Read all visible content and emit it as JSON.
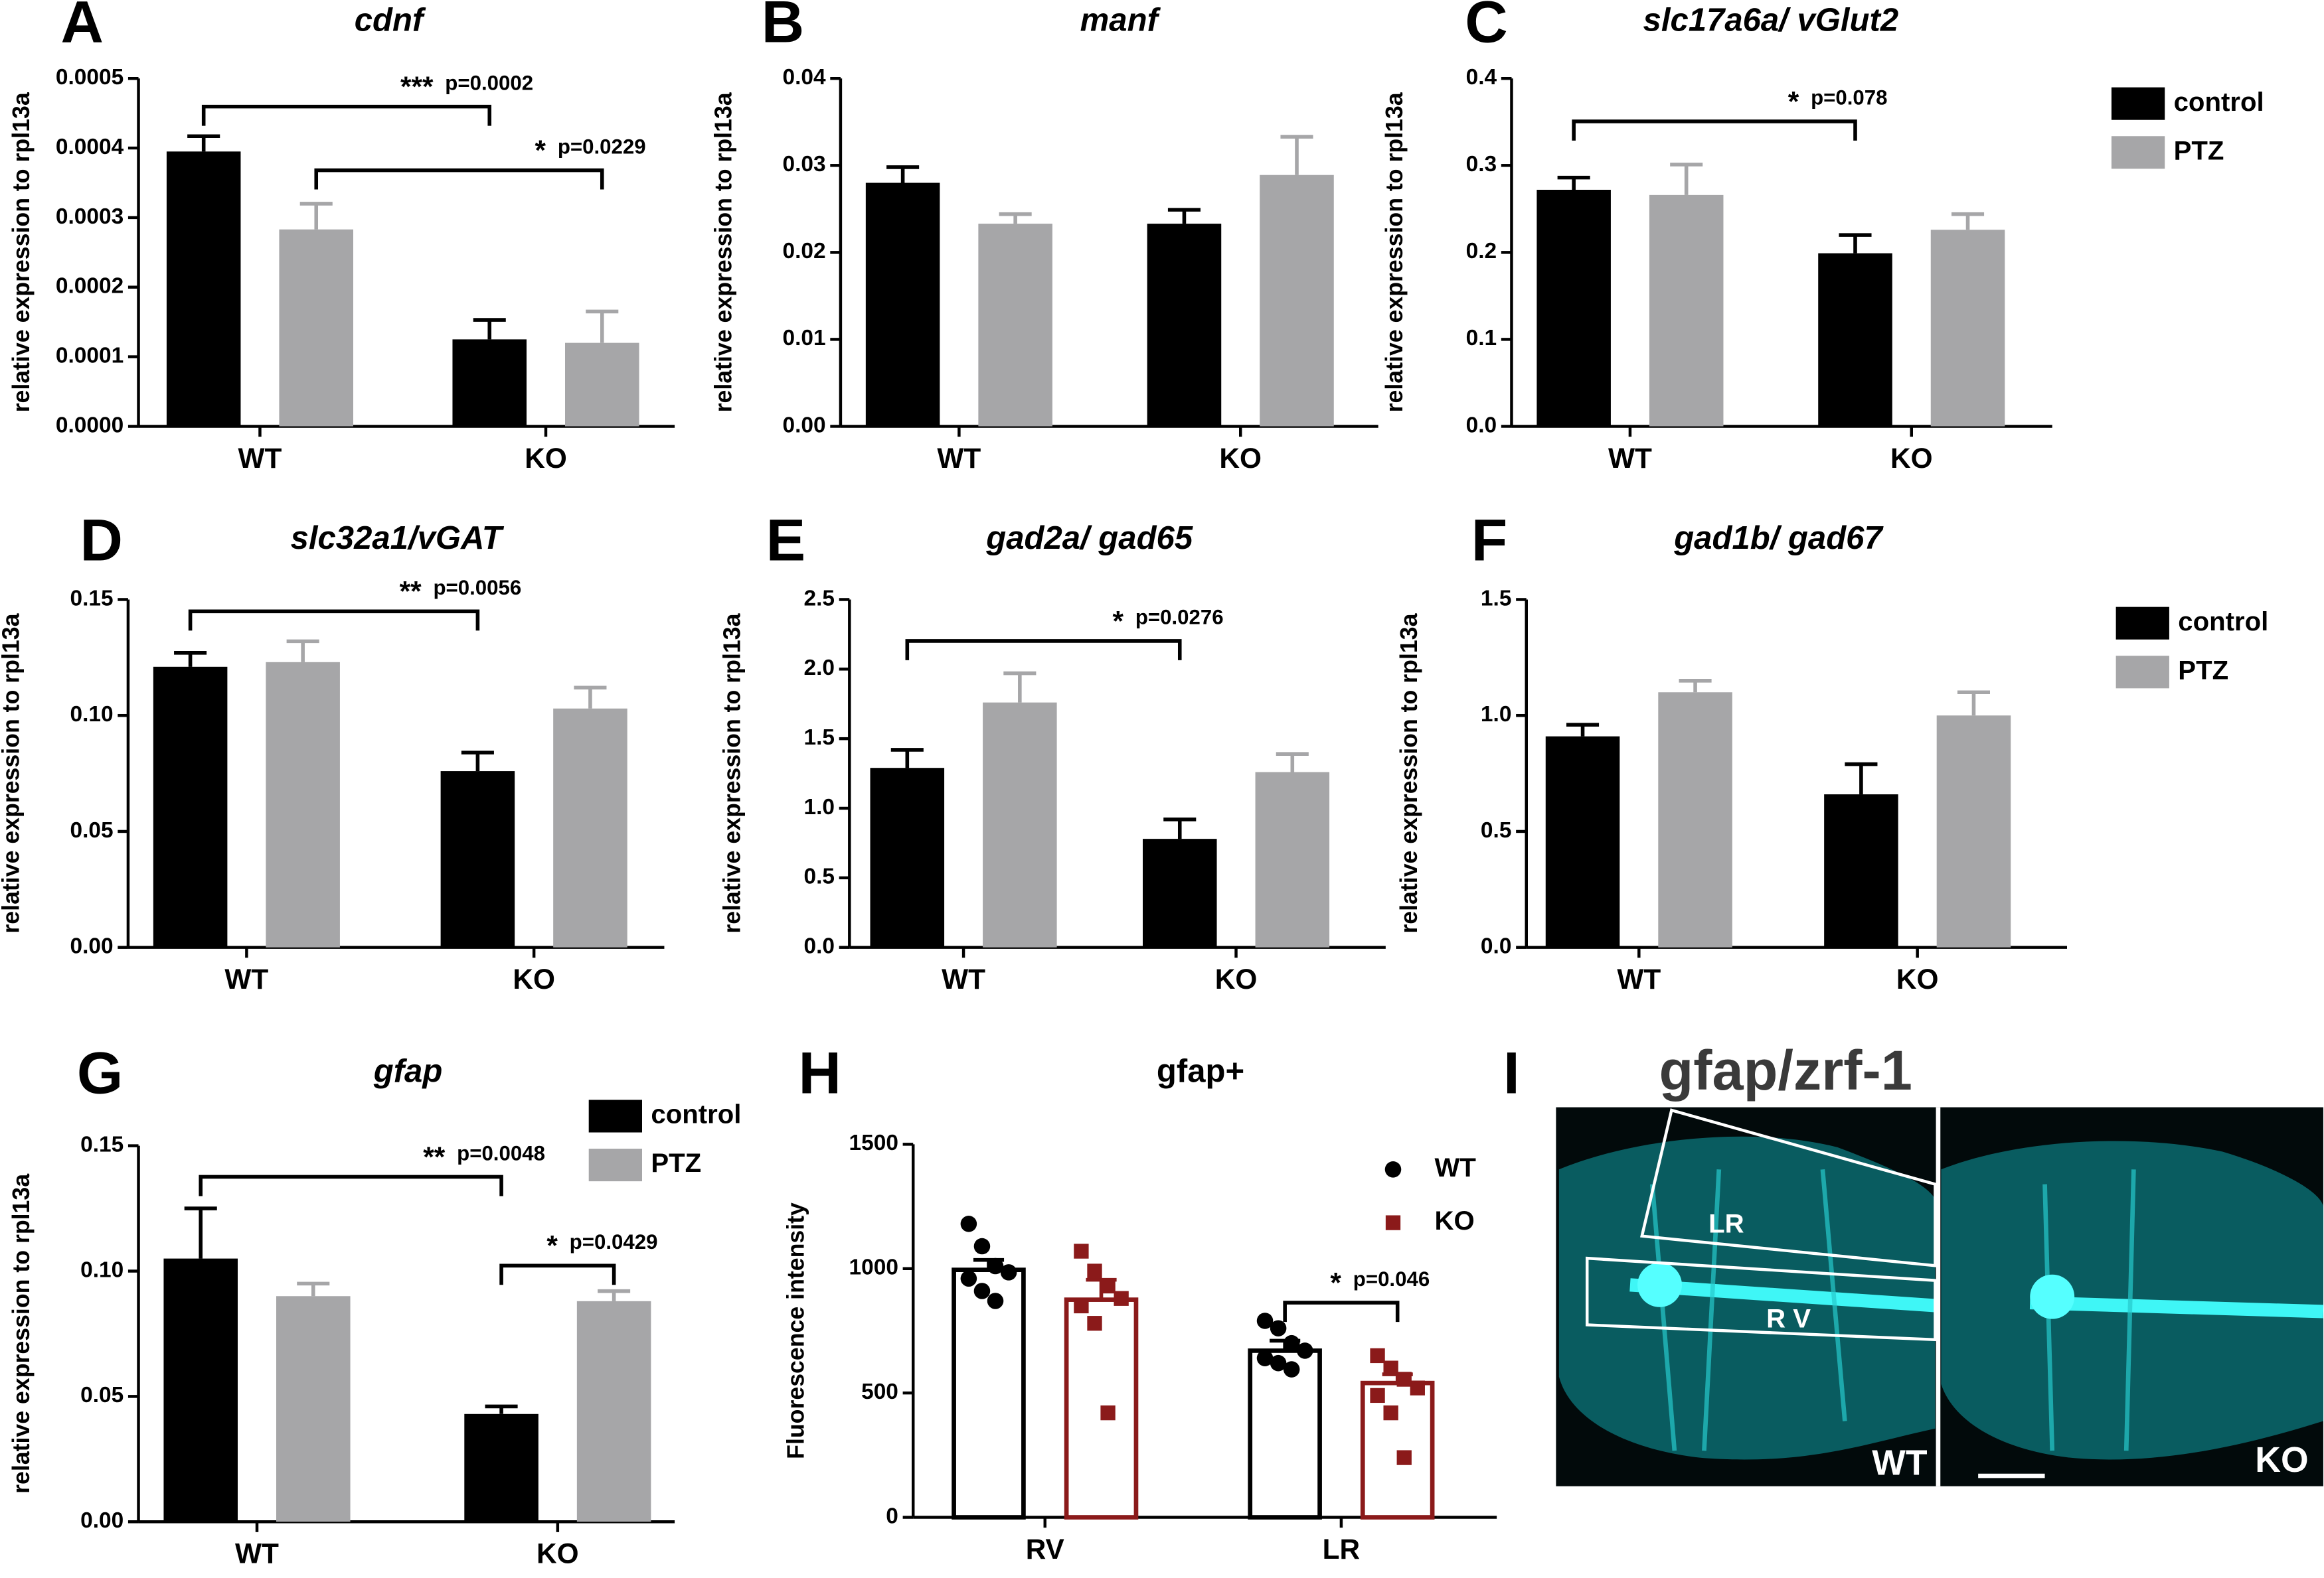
{
  "chart_data": [
    {
      "type": "bar",
      "letter": "A",
      "title": "cdnf",
      "y_label": "relative expression to rpl13a",
      "categories": [
        "WT",
        "KO"
      ],
      "series": [
        {
          "color": "#000000",
          "values": [
            0.000395,
            0.000125
          ],
          "errors": [
            2.2e-05,
            2.8e-05
          ]
        },
        {
          "color": "#a6a6a8",
          "values": [
            0.000283,
            0.00012
          ],
          "errors": [
            3.7e-05,
            4.5e-05
          ]
        }
      ],
      "ylim": [
        0,
        0.0005
      ],
      "yticks": [
        {
          "value": 0,
          "label": "0.0000"
        },
        0.0001,
        0.0002,
        0.0003,
        0.0004,
        0.0005
      ],
      "annotations": [
        {
          "stars": "***",
          "p": "p=0.0002"
        },
        {
          "stars": "*",
          "p": "p=0.0229"
        }
      ]
    },
    {
      "type": "bar",
      "letter": "B",
      "title": "manf",
      "y_label": "relative expression to rpl13a",
      "categories": [
        "WT",
        "KO"
      ],
      "series": [
        {
          "color": "#000000",
          "values": [
            0.028,
            0.0233
          ],
          "errors": [
            0.0018,
            0.0016
          ]
        },
        {
          "color": "#a6a6a8",
          "values": [
            0.0233,
            0.0289
          ],
          "errors": [
            0.0011,
            0.0044
          ]
        }
      ],
      "ylim": [
        0,
        0.04
      ],
      "yticks": [
        {
          "value": 0,
          "label": "0.00"
        },
        0.01,
        0.02,
        0.03,
        0.04
      ],
      "annotations": []
    },
    {
      "type": "bar",
      "letter": "C",
      "title": "slc17a6a/ vGlut2",
      "y_label": "relative expression to rpl13a",
      "categories": [
        "WT",
        "KO"
      ],
      "series": [
        {
          "name": "control",
          "color": "#000000",
          "values": [
            0.272,
            0.199
          ],
          "errors": [
            0.014,
            0.021
          ]
        },
        {
          "name": "PTZ",
          "color": "#a6a6a8",
          "values": [
            0.266,
            0.226
          ],
          "errors": [
            0.035,
            0.018
          ]
        }
      ],
      "ylim": [
        0,
        0.4
      ],
      "yticks": [
        {
          "value": 0,
          "label": "0.0"
        },
        0.1,
        0.2,
        0.3,
        0.4
      ],
      "legend": "right",
      "annotations": [
        {
          "stars": "*",
          "p": "p=0.078"
        }
      ]
    },
    {
      "type": "bar",
      "letter": "D",
      "title": "slc32a1/vGAT",
      "y_label": "relative expression to rpl13a",
      "categories": [
        "WT",
        "KO"
      ],
      "series": [
        {
          "color": "#000000",
          "values": [
            0.121,
            0.076
          ],
          "errors": [
            0.006,
            0.008
          ]
        },
        {
          "color": "#a6a6a8",
          "values": [
            0.123,
            0.103
          ],
          "errors": [
            0.009,
            0.009
          ]
        }
      ],
      "ylim": [
        0,
        0.15
      ],
      "yticks": [
        {
          "value": 0,
          "label": "0.00"
        },
        0.05,
        {
          "value": 0.1,
          "label": "0.10"
        },
        0.15
      ],
      "annotations": [
        {
          "stars": "**",
          "p": "p=0.0056"
        }
      ]
    },
    {
      "type": "bar",
      "letter": "E",
      "title": "gad2a/ gad65",
      "y_label": "relative expression to rpl13a",
      "categories": [
        "WT",
        "KO"
      ],
      "series": [
        {
          "color": "#000000",
          "values": [
            1.29,
            0.78
          ],
          "errors": [
            0.13,
            0.14
          ]
        },
        {
          "color": "#a6a6a8",
          "values": [
            1.76,
            1.26
          ],
          "errors": [
            0.21,
            0.13
          ]
        }
      ],
      "ylim": [
        0,
        2.5
      ],
      "yticks": [
        {
          "value": 0,
          "label": "0.0"
        },
        0.5,
        {
          "value": 1,
          "label": "1.0"
        },
        1.5,
        {
          "value": 2,
          "label": "2.0"
        },
        2.5
      ],
      "annotations": [
        {
          "stars": "*",
          "p": "p=0.0276"
        }
      ]
    },
    {
      "type": "bar",
      "letter": "F",
      "title": "gad1b/ gad67",
      "y_label": "relative expression to rpl13a",
      "categories": [
        "WT",
        "KO"
      ],
      "series": [
        {
          "name": "control",
          "color": "#000000",
          "values": [
            0.91,
            0.66
          ],
          "errors": [
            0.05,
            0.13
          ]
        },
        {
          "name": "PTZ",
          "color": "#a6a6a8",
          "values": [
            1.1,
            1.0
          ],
          "errors": [
            0.05,
            0.1
          ]
        }
      ],
      "ylim": [
        0,
        1.5
      ],
      "yticks": [
        {
          "value": 0,
          "label": "0.0"
        },
        0.5,
        {
          "value": 1,
          "label": "1.0"
        },
        1.5
      ],
      "legend": "right",
      "annotations": []
    },
    {
      "type": "bar",
      "letter": "G",
      "title": "gfap",
      "y_label": "relative expression to rpl13a",
      "categories": [
        "WT",
        "KO"
      ],
      "series": [
        {
          "name": "control",
          "color": "#000000",
          "values": [
            0.105,
            0.043
          ],
          "errors": [
            0.02,
            0.003
          ]
        },
        {
          "name": "PTZ",
          "color": "#a6a6a8",
          "values": [
            0.09,
            0.088
          ],
          "errors": [
            0.005,
            0.004
          ]
        }
      ],
      "ylim": [
        0,
        0.15
      ],
      "yticks": [
        {
          "value": 0,
          "label": "0.00"
        },
        0.05,
        {
          "value": 0.1,
          "label": "0.10"
        },
        0.15
      ],
      "legend": "top-right",
      "annotations": [
        {
          "stars": "**",
          "p": "p=0.0048"
        },
        {
          "stars": "*",
          "p": "p=0.0429"
        }
      ]
    },
    {
      "type": "dotbar",
      "letter": "H",
      "title": "gfap+",
      "y_label": "Fluorescence intensity",
      "categories": [
        "RV",
        "LR"
      ],
      "series": [
        {
          "name": "WT",
          "color": "#000000",
          "marker": "circle",
          "values": [
            995,
            670
          ],
          "errors": [
            40,
            40
          ],
          "points": [
            [
              1180,
              1090,
              1010,
              985,
              960,
              910,
              870
            ],
            [
              790,
              760,
              700,
              670,
              640,
              620,
              595
            ]
          ]
        },
        {
          "name": "KO",
          "color": "#8b1a1a",
          "marker": "square",
          "values": [
            875,
            540
          ],
          "errors": [
            80,
            35
          ],
          "points": [
            [
              1070,
              990,
              930,
              880,
              850,
              780,
              420
            ],
            [
              650,
              600,
              555,
              520,
              490,
              420,
              240
            ]
          ]
        }
      ],
      "ylim": [
        0,
        1500
      ],
      "yticks": [
        0,
        500,
        1000,
        1500
      ],
      "legend": "top-right",
      "annotations": [
        {
          "stars": "*",
          "p": "p=0.046"
        }
      ]
    }
  ],
  "image_panel": {
    "letter": "I",
    "title": "gfap/zrf-1",
    "labels": [
      "LR",
      "R V",
      "WT",
      "KO"
    ]
  }
}
